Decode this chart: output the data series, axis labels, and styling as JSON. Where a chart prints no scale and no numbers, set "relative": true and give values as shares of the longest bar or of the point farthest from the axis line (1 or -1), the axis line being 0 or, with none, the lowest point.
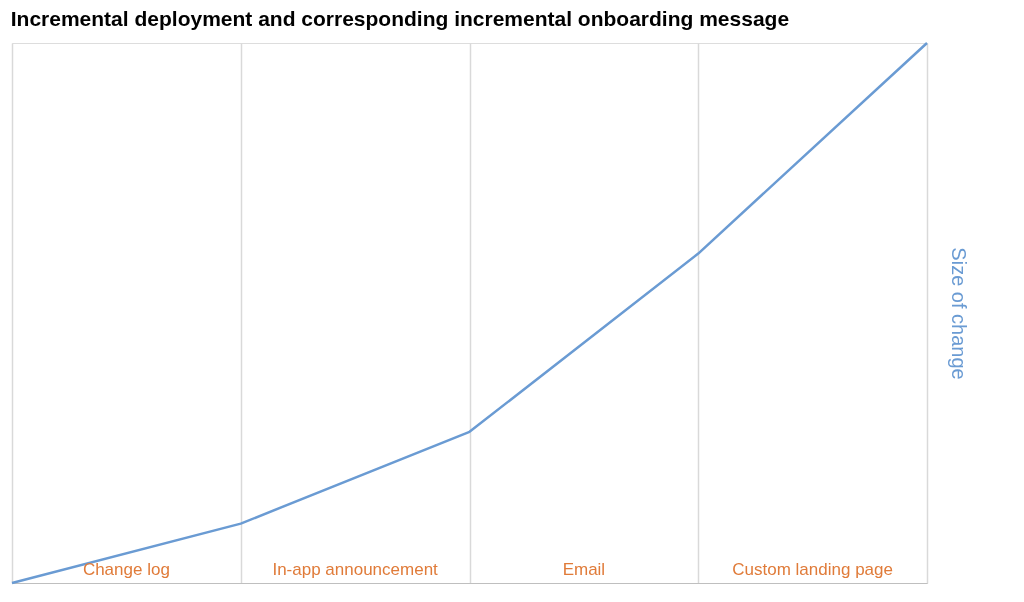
{
  "chart_data": {
    "type": "line",
    "title": "Incremental deployment and corresponding incremental onboarding message",
    "ylabel": "Size of change",
    "relative": true,
    "categories": [
      null,
      null,
      null,
      null,
      null
    ],
    "series": [
      {
        "color": "#6a9bd3",
        "values": [
          0,
          0.11,
          0.28,
          0.61,
          1
        ]
      }
    ],
    "annotations": [
      "Change log",
      "In-app announcement",
      "Email",
      "Custom landing page"
    ],
    "grid": "x",
    "marker": "none",
    "line_style": "solid"
  }
}
